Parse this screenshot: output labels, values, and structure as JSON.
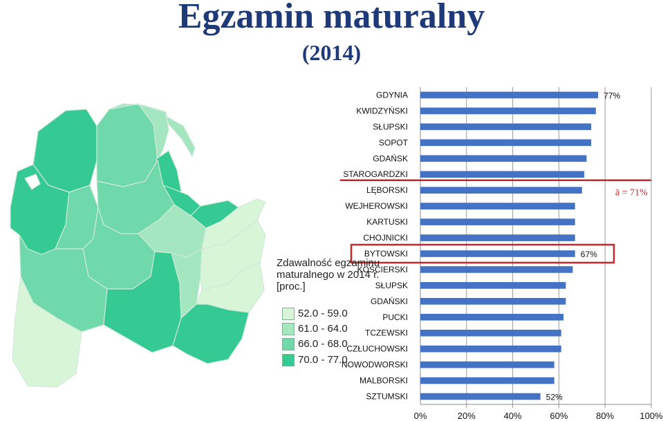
{
  "title": "Egzamin maturalny",
  "subtitle": "(2014)",
  "legend": {
    "title": "Zdawalność egzaminu maturalnego w 2014 r. [proc.]",
    "items": [
      {
        "label": "52.0 - 59.0",
        "color": "#d8f5d8"
      },
      {
        "label": "61.0 - 64.0",
        "color": "#a3e6bf"
      },
      {
        "label": "66.0 - 68.0",
        "color": "#6fd9ac"
      },
      {
        "label": "70.0 - 77.0",
        "color": "#35c994"
      }
    ]
  },
  "chart_data": {
    "type": "bar",
    "orientation": "horizontal",
    "categories": [
      "GDYNIA",
      "KWIDZYŃSKI",
      "SŁUPSKI",
      "SOPOT",
      "GDAŃSK",
      "STAROGARDZKI",
      "LĘBORSKI",
      "WEJHEROWSKI",
      "KARTUSKI",
      "CHOJNICKI",
      "BYTOWSKI",
      "KOŚCIERSKI",
      "SŁUPSK",
      "GDAŃSKI",
      "PUCKI",
      "TCZEWSKI",
      "CZŁUCHOWSKI",
      "NOWODWORSKI",
      "MALBORSKI",
      "SZTUMSKI"
    ],
    "values": [
      77,
      76,
      74,
      74,
      72,
      71,
      70,
      67,
      67,
      67,
      67,
      66,
      63,
      63,
      62,
      61,
      61,
      58,
      58,
      52
    ],
    "xlim": [
      0,
      100
    ],
    "xticks": [
      "0%",
      "20%",
      "40%",
      "60%",
      "80%",
      "100%"
    ],
    "bar_color": "#4472c4",
    "data_labels": [
      {
        "category": "GDYNIA",
        "text": "77%"
      },
      {
        "category": "BYTOWSKI",
        "text": "67%"
      },
      {
        "category": "SZTUMSKI",
        "text": "52%"
      }
    ],
    "average": {
      "value": 71,
      "label": "ā = 71%",
      "color": "#c0282d"
    },
    "highlight": {
      "category": "BYTOWSKI",
      "color": "#c0282d"
    }
  }
}
